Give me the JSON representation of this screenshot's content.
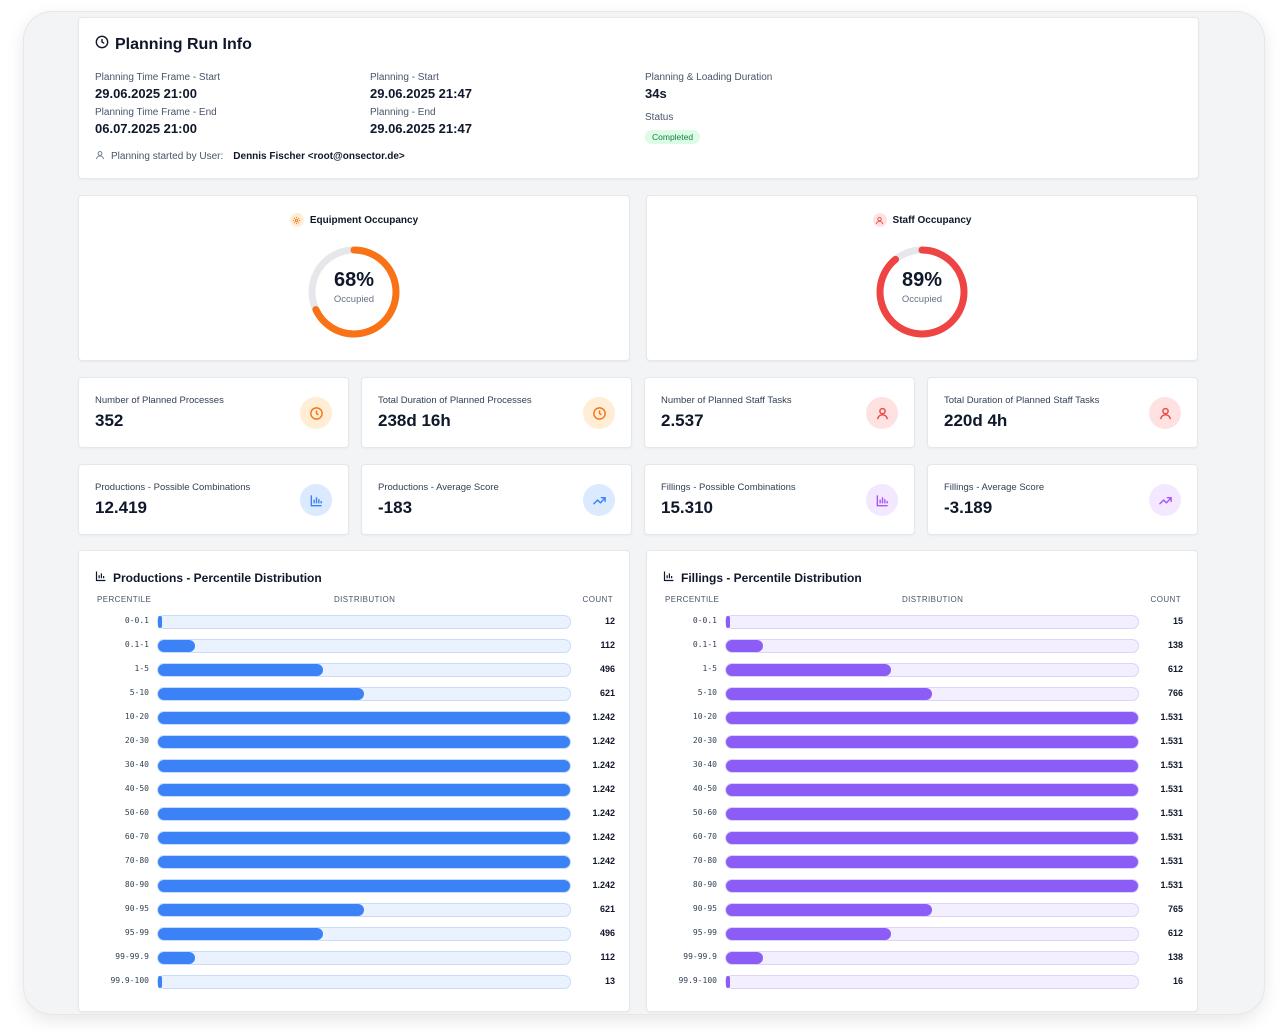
{
  "planning": {
    "title": "Planning Run Info",
    "tf_start_label": "Planning Time Frame - Start",
    "tf_start_value": "29.06.2025 21:00",
    "tf_end_label": "Planning Time Frame - End",
    "tf_end_value": "06.07.2025 21:00",
    "start_label": "Planning - Start",
    "start_value": "29.06.2025 21:47",
    "end_label": "Planning - End",
    "end_value": "29.06.2025 21:47",
    "duration_label": "Planning & Loading Duration",
    "duration_value": "34s",
    "status_label": "Status",
    "status_value": "Completed",
    "user_label": "Planning started by User:",
    "user_value": "Dennis Fischer <root@onsector.de>"
  },
  "occupancy": {
    "equipment": {
      "title": "Equipment Occupancy",
      "percent": 68,
      "percent_label": "68%",
      "sub": "Occupied",
      "color": "#f97316",
      "icon": "cog-icon"
    },
    "staff": {
      "title": "Staff Occupancy",
      "percent": 89,
      "percent_label": "89%",
      "sub": "Occupied",
      "color": "#ef4444",
      "icon": "user-icon"
    }
  },
  "stats": [
    {
      "label": "Number of Planned Processes",
      "value": "352",
      "icon": "clock-icon",
      "color": "#f97316",
      "bg": "#ffedd5"
    },
    {
      "label": "Total Duration of Planned Processes",
      "value": "238d 16h",
      "icon": "clock-icon",
      "color": "#f97316",
      "bg": "#ffedd5"
    },
    {
      "label": "Number of Planned Staff Tasks",
      "value": "2.537",
      "icon": "user-icon",
      "color": "#ef4444",
      "bg": "#fee2e2"
    },
    {
      "label": "Total Duration of Planned Staff Tasks",
      "value": "220d 4h",
      "icon": "user-icon",
      "color": "#ef4444",
      "bg": "#fee2e2"
    },
    {
      "label": "Productions - Possible Combinations",
      "value": "12.419",
      "icon": "bar-chart-icon",
      "color": "#3b82f6",
      "bg": "#dbeafe"
    },
    {
      "label": "Productions - Average Score",
      "value": "-183",
      "icon": "trending-up-icon",
      "color": "#3b82f6",
      "bg": "#dbeafe"
    },
    {
      "label": "Fillings - Possible Combinations",
      "value": "15.310",
      "icon": "bar-chart-icon",
      "color": "#a855f7",
      "bg": "#f3e8ff"
    },
    {
      "label": "Fillings - Average Score",
      "value": "-3.189",
      "icon": "trending-up-icon",
      "color": "#a855f7",
      "bg": "#f3e8ff"
    }
  ],
  "distributions": {
    "headers": {
      "percentile": "PERCENTILE",
      "distribution": "DISTRIBUTION",
      "count": "COUNT"
    },
    "productions": {
      "title": "Productions - Percentile Distribution",
      "color": "#3b82f6",
      "track": "#eaf2fe",
      "track_border": "#c9dcfb",
      "rows": [
        {
          "p": "0-0.1",
          "c": "12",
          "v": 12
        },
        {
          "p": "0.1-1",
          "c": "112",
          "v": 112
        },
        {
          "p": "1-5",
          "c": "496",
          "v": 496
        },
        {
          "p": "5-10",
          "c": "621",
          "v": 621
        },
        {
          "p": "10-20",
          "c": "1.242",
          "v": 1242
        },
        {
          "p": "20-30",
          "c": "1.242",
          "v": 1242
        },
        {
          "p": "30-40",
          "c": "1.242",
          "v": 1242
        },
        {
          "p": "40-50",
          "c": "1.242",
          "v": 1242
        },
        {
          "p": "50-60",
          "c": "1.242",
          "v": 1242
        },
        {
          "p": "60-70",
          "c": "1.242",
          "v": 1242
        },
        {
          "p": "70-80",
          "c": "1.242",
          "v": 1242
        },
        {
          "p": "80-90",
          "c": "1.242",
          "v": 1242
        },
        {
          "p": "90-95",
          "c": "621",
          "v": 621
        },
        {
          "p": "95-99",
          "c": "496",
          "v": 496
        },
        {
          "p": "99-99.9",
          "c": "112",
          "v": 112
        },
        {
          "p": "99.9-100",
          "c": "13",
          "v": 13
        }
      ]
    },
    "fillings": {
      "title": "Fillings - Percentile Distribution",
      "color": "#8b5cf6",
      "track": "#f3efff",
      "track_border": "#ddd3fb",
      "rows": [
        {
          "p": "0-0.1",
          "c": "15",
          "v": 15
        },
        {
          "p": "0.1-1",
          "c": "138",
          "v": 138
        },
        {
          "p": "1-5",
          "c": "612",
          "v": 612
        },
        {
          "p": "5-10",
          "c": "766",
          "v": 766
        },
        {
          "p": "10-20",
          "c": "1.531",
          "v": 1531
        },
        {
          "p": "20-30",
          "c": "1.531",
          "v": 1531
        },
        {
          "p": "30-40",
          "c": "1.531",
          "v": 1531
        },
        {
          "p": "40-50",
          "c": "1.531",
          "v": 1531
        },
        {
          "p": "50-60",
          "c": "1.531",
          "v": 1531
        },
        {
          "p": "60-70",
          "c": "1.531",
          "v": 1531
        },
        {
          "p": "70-80",
          "c": "1.531",
          "v": 1531
        },
        {
          "p": "80-90",
          "c": "1.531",
          "v": 1531
        },
        {
          "p": "90-95",
          "c": "765",
          "v": 765
        },
        {
          "p": "95-99",
          "c": "612",
          "v": 612
        },
        {
          "p": "99-99.9",
          "c": "138",
          "v": 138
        },
        {
          "p": "99.9-100",
          "c": "16",
          "v": 16
        }
      ]
    }
  }
}
